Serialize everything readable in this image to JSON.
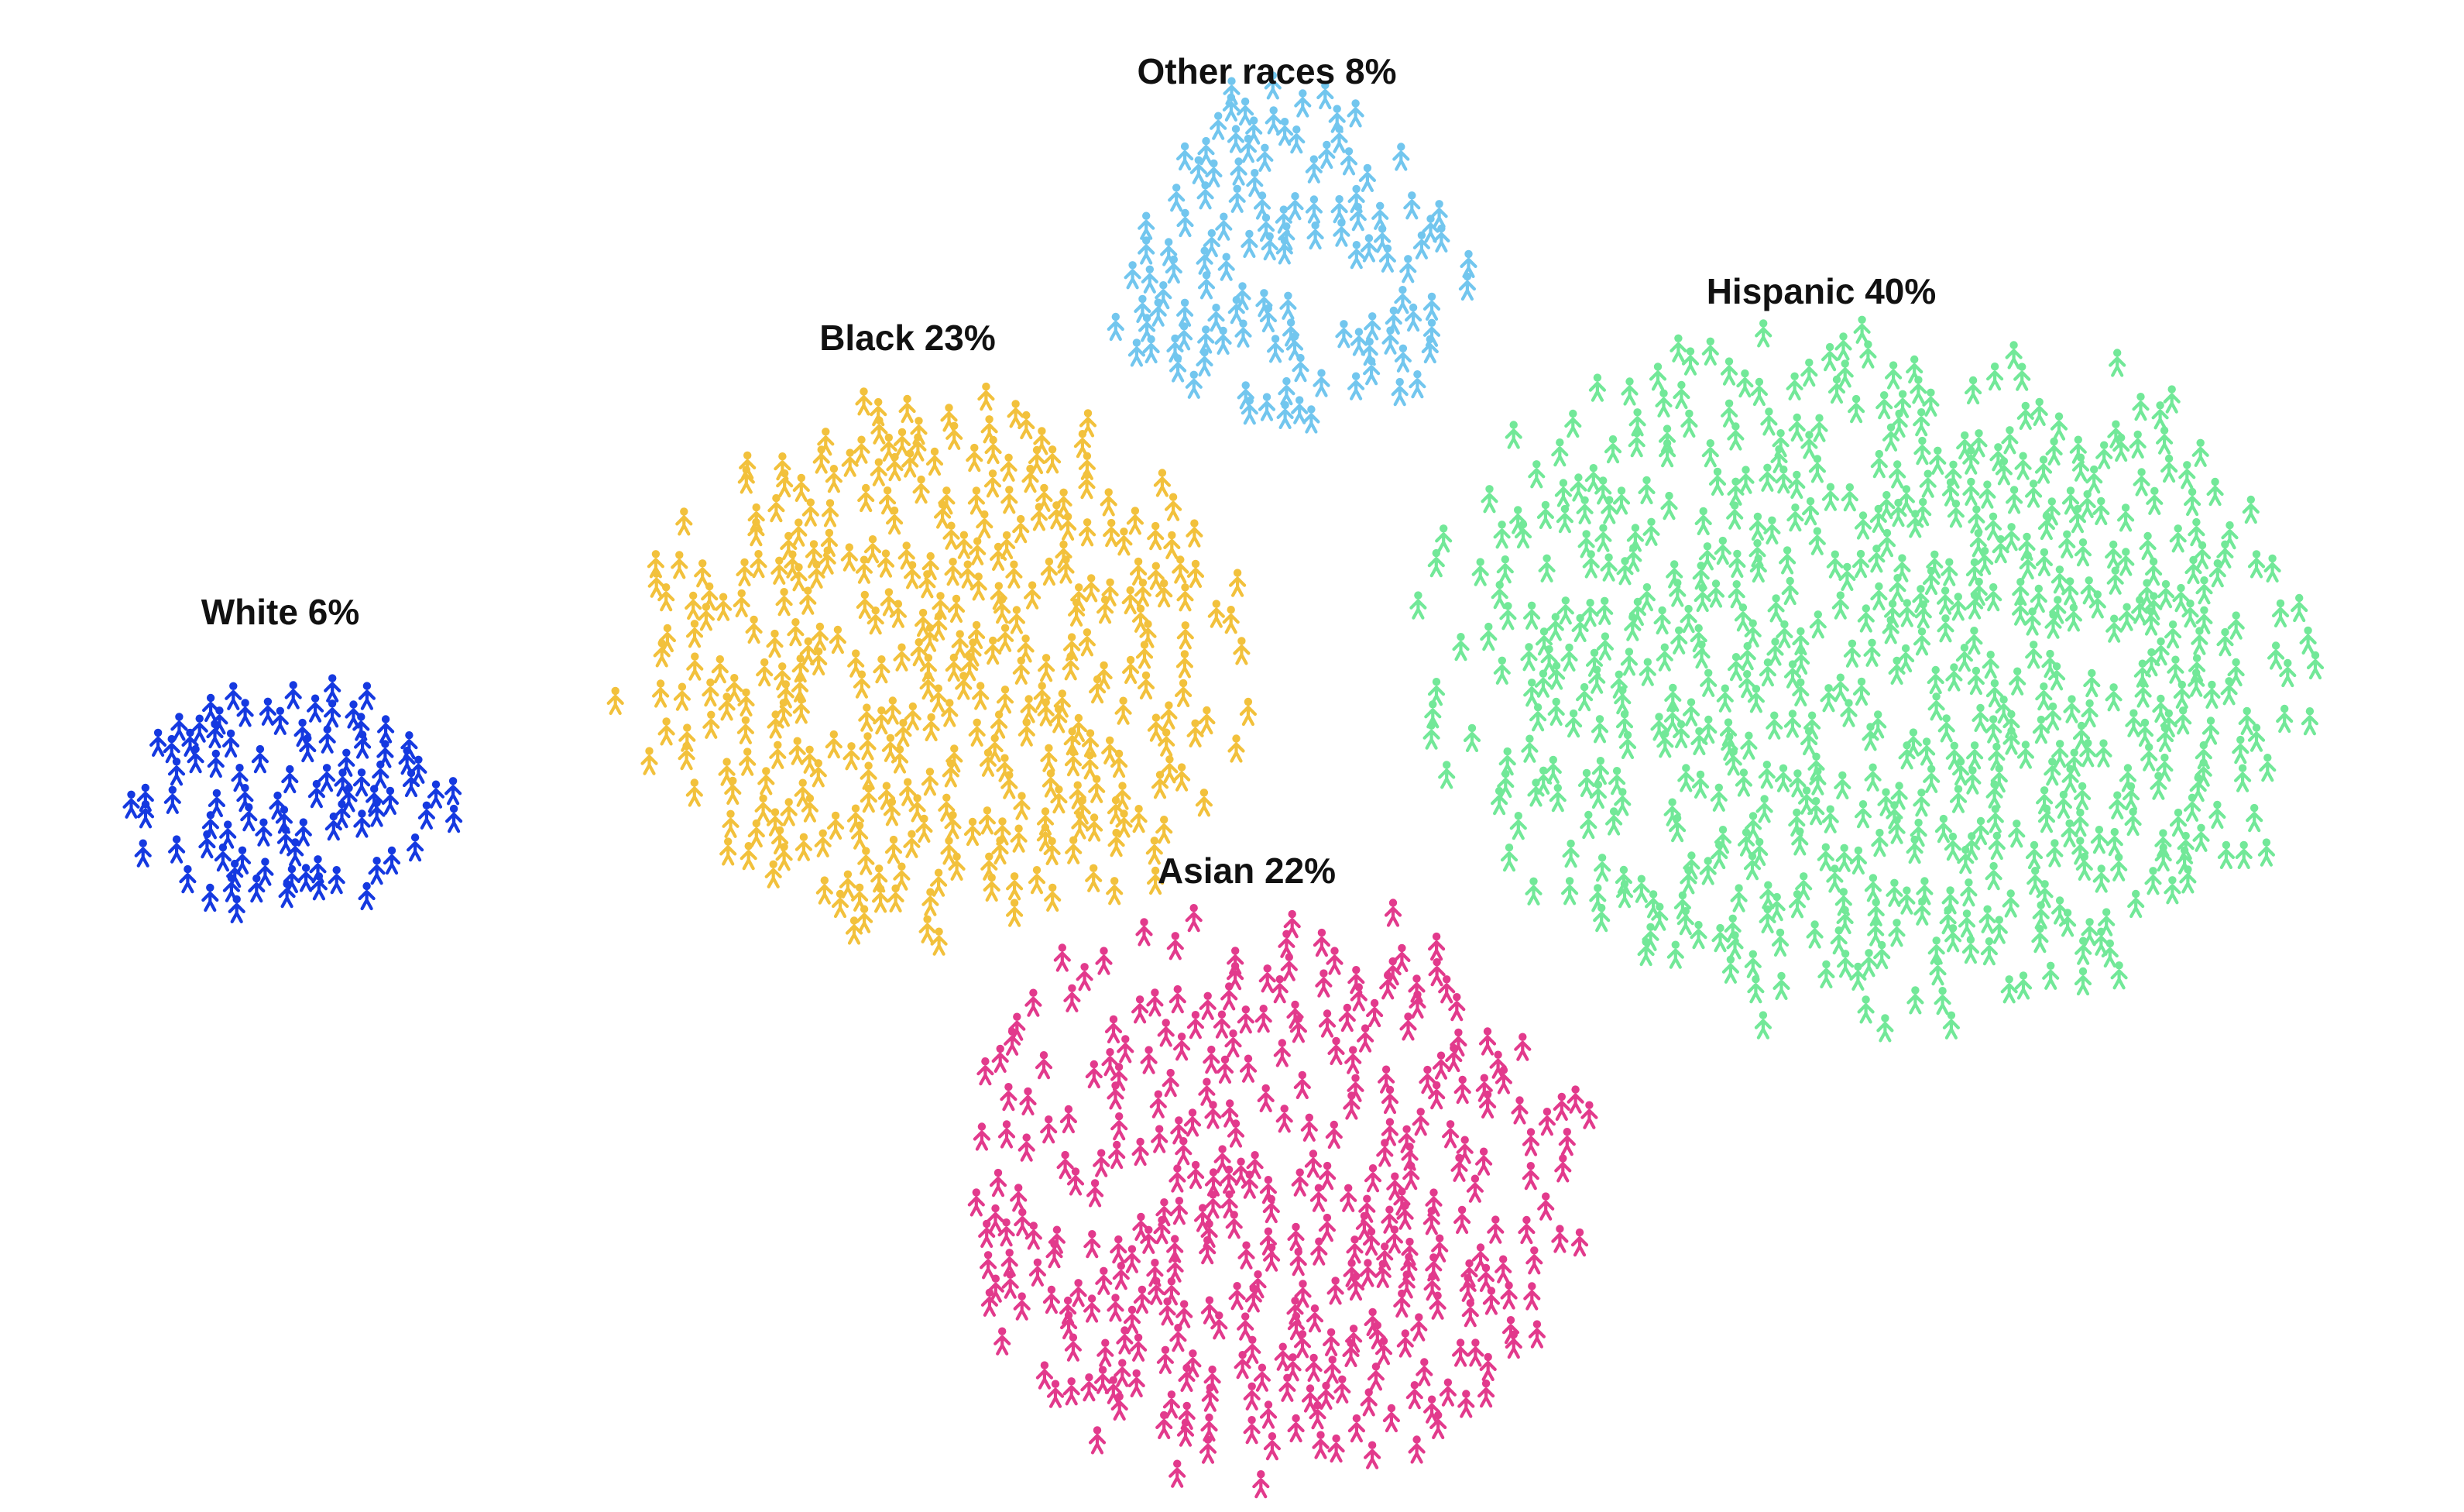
{
  "chart_data": {
    "type": "scatter",
    "encoding": "unit pictogram clusters",
    "title": "",
    "series": [
      {
        "name": "White",
        "label": "White 6%",
        "value": 6,
        "color": "#1539e0"
      },
      {
        "name": "Black",
        "label": "Black 23%",
        "value": 23,
        "color": "#f2c13c"
      },
      {
        "name": "Other races",
        "label": "Other races 8%",
        "value": 8,
        "color": "#72c6ee"
      },
      {
        "name": "Hispanic",
        "label": "Hispanic 40%",
        "value": 40,
        "color": "#72e898"
      },
      {
        "name": "Asian",
        "label": "Asian 22%",
        "value": 22,
        "color": "#e23a8c"
      }
    ]
  }
}
